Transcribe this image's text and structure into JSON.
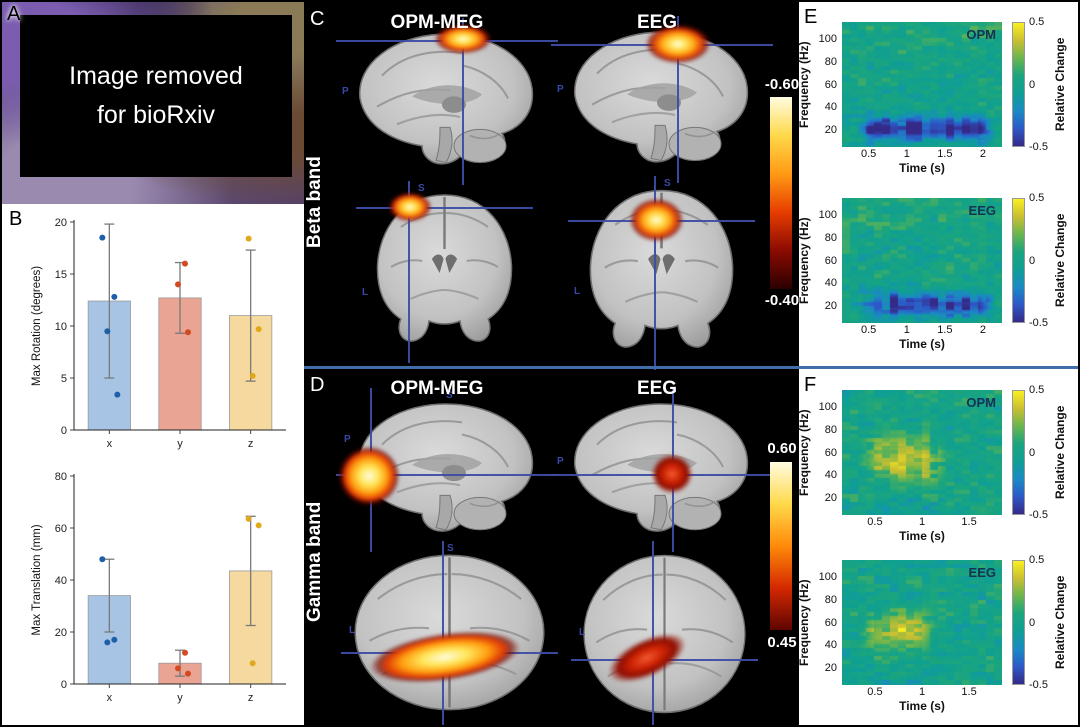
{
  "panels": {
    "a": {
      "label": "A",
      "notice": [
        "Image removed",
        "for bioRxiv"
      ]
    },
    "b": {
      "label": "B"
    },
    "c": {
      "label": "C",
      "row_label": "Beta band",
      "columns": [
        "OPM-MEG",
        "EEG"
      ],
      "colorbar_top": "-0.60",
      "colorbar_bottom": "-0.40"
    },
    "d": {
      "label": "D",
      "row_label": "Gamma band",
      "columns": [
        "OPM-MEG",
        "EEG"
      ],
      "colorbar_top": "0.60",
      "colorbar_bottom": "0.45"
    },
    "e": {
      "label": "E"
    },
    "f": {
      "label": "F"
    }
  },
  "orientation": {
    "superior": "S",
    "posterior": "P",
    "left": "L"
  },
  "chart_data": [
    {
      "type": "bar",
      "categories": [
        "x",
        "y",
        "z"
      ],
      "values": [
        12.4,
        12.7,
        11.0
      ],
      "errors": [
        7.4,
        3.4,
        6.3
      ],
      "points": [
        [
          18.5,
          12.8,
          9.5,
          3.4
        ],
        [
          16.0,
          14.0,
          9.4
        ],
        [
          18.4,
          9.7,
          5.2
        ]
      ],
      "ylabel": "Max Rotation (degrees)",
      "xlabel": "",
      "ylim": [
        0,
        20
      ],
      "yticks": [
        0,
        5,
        10,
        15,
        20
      ],
      "bar_colors": [
        "#a8c4e4",
        "#e9a493",
        "#f5d99f"
      ],
      "point_colors": [
        "#1f5fa8",
        "#d44a20",
        "#e0a91c"
      ],
      "error_color": "#7a7a7a"
    },
    {
      "type": "bar",
      "categories": [
        "x",
        "y",
        "z"
      ],
      "values": [
        34,
        8,
        43.5
      ],
      "errors": [
        14,
        5,
        21
      ],
      "points": [
        [
          48,
          17,
          16
        ],
        [
          12,
          6,
          4
        ],
        [
          63.5,
          61,
          8
        ]
      ],
      "ylabel": "Max Translation (mm)",
      "xlabel": "",
      "ylim": [
        0,
        80
      ],
      "yticks": [
        0,
        20,
        40,
        60,
        80
      ],
      "bar_colors": [
        "#a8c4e4",
        "#e9a493",
        "#f5d99f"
      ],
      "point_colors": [
        "#1f5fa8",
        "#d44a20",
        "#e0a91c"
      ],
      "error_color": "#7a7a7a"
    },
    {
      "type": "heatmap",
      "panel": "E",
      "title": "OPM",
      "xlabel": "Time (s)",
      "ylabel": "Frequency (Hz)",
      "xticks": [
        0.5,
        1,
        1.5,
        2
      ],
      "yticks": [
        20,
        40,
        60,
        80,
        100
      ],
      "x_range_s": [
        0.15,
        2.25
      ],
      "y_range_hz": [
        5,
        115
      ],
      "effect": {
        "sign": "decrease",
        "band_hz": [
          13,
          30
        ],
        "time_s": [
          0.3,
          2.2
        ],
        "peak_relative_change": -0.45
      },
      "colorbar": {
        "ticks": [
          "0.5",
          "0",
          "-0.5"
        ],
        "label": "Relative Change",
        "range": [
          -0.5,
          0.5
        ]
      }
    },
    {
      "type": "heatmap",
      "panel": "E",
      "title": "EEG",
      "xlabel": "Time (s)",
      "ylabel": "Frequency (Hz)",
      "xticks": [
        0.5,
        1,
        1.5,
        2
      ],
      "yticks": [
        20,
        40,
        60,
        80,
        100
      ],
      "x_range_s": [
        0.15,
        2.25
      ],
      "y_range_hz": [
        5,
        115
      ],
      "effect": {
        "sign": "decrease",
        "band_hz": [
          13,
          30
        ],
        "time_s": [
          0.3,
          2.2
        ],
        "peak_relative_change": -0.4
      },
      "colorbar": {
        "ticks": [
          "0.5",
          "0",
          "-0.5"
        ],
        "label": "Relative Change",
        "range": [
          -0.5,
          0.5
        ]
      }
    },
    {
      "type": "heatmap",
      "panel": "F",
      "title": "OPM",
      "xlabel": "Time (s)",
      "ylabel": "Frequency (Hz)",
      "xticks": [
        0.5,
        1,
        1.5
      ],
      "yticks": [
        20,
        40,
        60,
        80,
        100
      ],
      "x_range_s": [
        0.15,
        1.85
      ],
      "y_range_hz": [
        5,
        115
      ],
      "effect": {
        "sign": "increase",
        "band_hz": [
          40,
          70
        ],
        "time_s": [
          0.3,
          1.3
        ],
        "peak_relative_change": 0.35
      },
      "colorbar": {
        "ticks": [
          "0.5",
          "0",
          "-0.5"
        ],
        "label": "Relative Change",
        "range": [
          -0.5,
          0.5
        ]
      }
    },
    {
      "type": "heatmap",
      "panel": "F",
      "title": "EEG",
      "xlabel": "Time (s)",
      "ylabel": "Frequency (Hz)",
      "xticks": [
        0.5,
        1,
        1.5
      ],
      "yticks": [
        20,
        40,
        60,
        80,
        100
      ],
      "x_range_s": [
        0.15,
        1.85
      ],
      "y_range_hz": [
        5,
        115
      ],
      "effect": {
        "sign": "increase",
        "band_hz": [
          40,
          65
        ],
        "time_s": [
          0.3,
          1.2
        ],
        "peak_relative_change": 0.3
      },
      "colorbar": {
        "ticks": [
          "0.5",
          "0",
          "-0.5"
        ],
        "label": "Relative Change",
        "range": [
          -0.5,
          0.5
        ]
      }
    }
  ],
  "colormaps": {
    "hot_colorbar_beta": [
      "#fffce0",
      "#ffd94a",
      "#ff9a14",
      "#e63d00",
      "#8a0b00",
      "#2a0000"
    ],
    "hot_colorbar_gamma": [
      "#fffce0",
      "#ffd94a",
      "#ff8a0a",
      "#d42800",
      "#5e0500"
    ],
    "parula": [
      "#352a87",
      "#2d59c8",
      "#1b8ac3",
      "#0f9f93",
      "#1ba57e",
      "#6ab54f",
      "#c9bf32",
      "#f9ef21"
    ]
  },
  "colors": {
    "divider": "#3f6ea8",
    "crosshair": "#3c4ea6",
    "panel_background_dark": "#000000",
    "spec_title_text": "#16324f",
    "orientation_text": "#3948a8"
  }
}
